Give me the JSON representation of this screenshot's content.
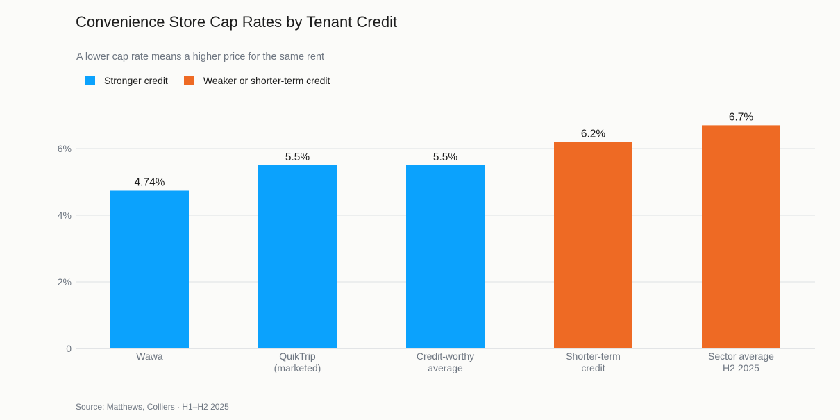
{
  "title": "Convenience Store Cap Rates by Tenant Credit",
  "subtitle": "A lower cap rate means a higher price for the same rent",
  "source": "Source: Matthews, Colliers · H1–H2 2025",
  "legend": [
    {
      "label": "Stronger credit",
      "color": "#0ba2fd"
    },
    {
      "label": "Weaker or shorter-term credit",
      "color": "#ee6a24"
    }
  ],
  "chart_data": {
    "type": "bar",
    "categories": [
      [
        "Wawa"
      ],
      [
        "QuikTrip",
        "(marketed)"
      ],
      [
        "Credit-worthy",
        "average"
      ],
      [
        "Shorter-term",
        "credit"
      ],
      [
        "Sector average",
        "H2 2025"
      ]
    ],
    "values": [
      4.74,
      5.5,
      5.5,
      6.2,
      6.7
    ],
    "value_labels": [
      "4.74%",
      "5.5%",
      "5.5%",
      "6.2%",
      "6.7%"
    ],
    "groups": [
      "Stronger credit",
      "Stronger credit",
      "Stronger credit",
      "Weaker or shorter-term credit",
      "Weaker or shorter-term credit"
    ],
    "colors": [
      "#0ba2fd",
      "#0ba2fd",
      "#0ba2fd",
      "#ee6a24",
      "#ee6a24"
    ],
    "yticks": [
      0,
      2,
      4,
      6
    ],
    "ytick_labels": [
      "0",
      "2%",
      "4%",
      "6%"
    ],
    "ylim": [
      0,
      7
    ],
    "grid": true,
    "legend_position": "top-left"
  }
}
